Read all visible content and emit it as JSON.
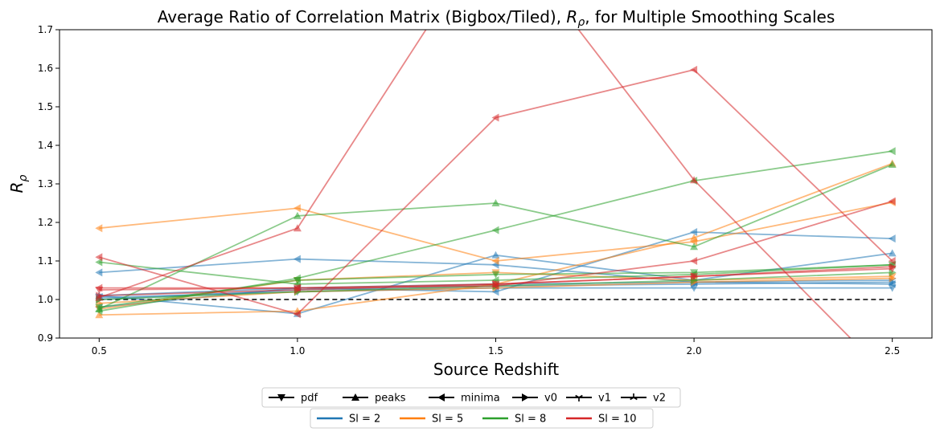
{
  "chart_data": {
    "type": "line",
    "title": "Average Ratio of Correlation Matrix (Bigbox/Tiled), $R_\\rho$, for Multiple Smoothing Scales",
    "title_text": "Average Ratio of Correlation Matrix (Bigbox/Tiled), ",
    "title_sym": "R",
    "title_sub": "ρ",
    "title_tail": ", for Multiple Smoothing Scales",
    "xlabel": "Source Redshift",
    "ylabel_sym": "R",
    "ylabel_sub": "ρ",
    "x": [
      0.5,
      1.0,
      1.5,
      2.0,
      2.5
    ],
    "x_ticks": [
      "0.5",
      "1.0",
      "1.5",
      "2.0",
      "2.5"
    ],
    "y_ticks": [
      "0.9",
      "1.0",
      "1.1",
      "1.2",
      "1.3",
      "1.4",
      "1.5",
      "1.6",
      "1.7"
    ],
    "xlim": [
      0.4,
      2.6
    ],
    "ylim": [
      0.9,
      1.7
    ],
    "grid": false,
    "reference_line": {
      "y": 1.0,
      "style": "dashed",
      "color": "#000000"
    },
    "legend_markers": [
      {
        "label": "pdf",
        "marker": "triangle-down"
      },
      {
        "label": "peaks",
        "marker": "triangle-up"
      },
      {
        "label": "minima",
        "marker": "triangle-left"
      },
      {
        "label": "v0",
        "marker": "triangle-right"
      },
      {
        "label": "v1",
        "marker": "tri-down"
      },
      {
        "label": "v2",
        "marker": "tri-up"
      }
    ],
    "legend_colors": [
      {
        "label": "Sl = 2",
        "color": "#1f77b4"
      },
      {
        "label": "Sl = 5",
        "color": "#ff7f0e"
      },
      {
        "label": "Sl = 8",
        "color": "#2ca02c"
      },
      {
        "label": "Sl = 10",
        "color": "#d62728"
      }
    ],
    "legend_placement": "below plot, two rows",
    "series": [
      {
        "color": "#1f77b4",
        "marker": "triangle-left",
        "values": [
          1.07,
          1.105,
          1.09,
          1.045,
          1.04
        ]
      },
      {
        "color": "#1f77b4",
        "marker": "triangle-left",
        "values": [
          0.98,
          1.03,
          1.02,
          1.175,
          1.158
        ]
      },
      {
        "color": "#1f77b4",
        "marker": "triangle-up",
        "values": [
          1.01,
          0.963,
          1.115,
          1.05,
          1.12
        ]
      },
      {
        "color": "#1f77b4",
        "marker": "triangle-down",
        "values": [
          1.005,
          1.02,
          1.03,
          1.03,
          1.03
        ]
      },
      {
        "color": "#1f77b4",
        "marker": "triangle-right",
        "values": [
          1.0,
          1.025,
          1.035,
          1.04,
          1.045
        ]
      },
      {
        "color": "#1f77b4",
        "marker": "tri-down",
        "values": [
          1.01,
          1.03,
          1.04,
          1.045,
          1.05
        ]
      },
      {
        "color": "#ff7f0e",
        "marker": "triangle-left",
        "values": [
          1.185,
          1.237,
          1.1,
          1.15,
          1.252
        ]
      },
      {
        "color": "#ff7f0e",
        "marker": "triangle-up",
        "values": [
          0.96,
          0.97,
          1.04,
          1.16,
          1.353
        ]
      },
      {
        "color": "#ff7f0e",
        "marker": "triangle-down",
        "values": [
          0.975,
          1.05,
          1.07,
          1.05,
          1.06
        ]
      },
      {
        "color": "#ff7f0e",
        "marker": "triangle-right",
        "values": [
          0.99,
          1.02,
          1.03,
          1.045,
          1.055
        ]
      },
      {
        "color": "#2ca02c",
        "marker": "triangle-left",
        "values": [
          1.097,
          1.04,
          1.05,
          1.065,
          1.09
        ]
      },
      {
        "color": "#2ca02c",
        "marker": "triangle-up",
        "values": [
          0.975,
          1.217,
          1.25,
          1.137,
          1.35
        ]
      },
      {
        "color": "#2ca02c",
        "marker": "triangle-left",
        "values": [
          0.97,
          1.055,
          1.18,
          1.308,
          1.385
        ]
      },
      {
        "color": "#2ca02c",
        "marker": "triangle-down",
        "values": [
          0.98,
          1.05,
          1.065,
          1.07,
          1.09
        ]
      },
      {
        "color": "#2ca02c",
        "marker": "triangle-right",
        "values": [
          1.0,
          1.02,
          1.035,
          1.05,
          1.07
        ]
      },
      {
        "color": "#d62728",
        "marker": "triangle-left",
        "values": [
          1.11,
          0.962,
          1.472,
          1.596,
          1.1
        ]
      },
      {
        "color": "#d62728",
        "marker": "triangle-up",
        "values": [
          1.005,
          1.185,
          1.98,
          1.31,
          0.79
        ]
      },
      {
        "color": "#d62728",
        "marker": "triangle-left",
        "values": [
          1.03,
          1.03,
          1.035,
          1.1,
          1.255
        ]
      },
      {
        "color": "#d62728",
        "marker": "triangle-down",
        "values": [
          1.025,
          1.03,
          1.04,
          1.06,
          1.08
        ]
      },
      {
        "color": "#d62728",
        "marker": "triangle-right",
        "values": [
          1.01,
          1.025,
          1.04,
          1.06,
          1.085
        ]
      }
    ]
  }
}
